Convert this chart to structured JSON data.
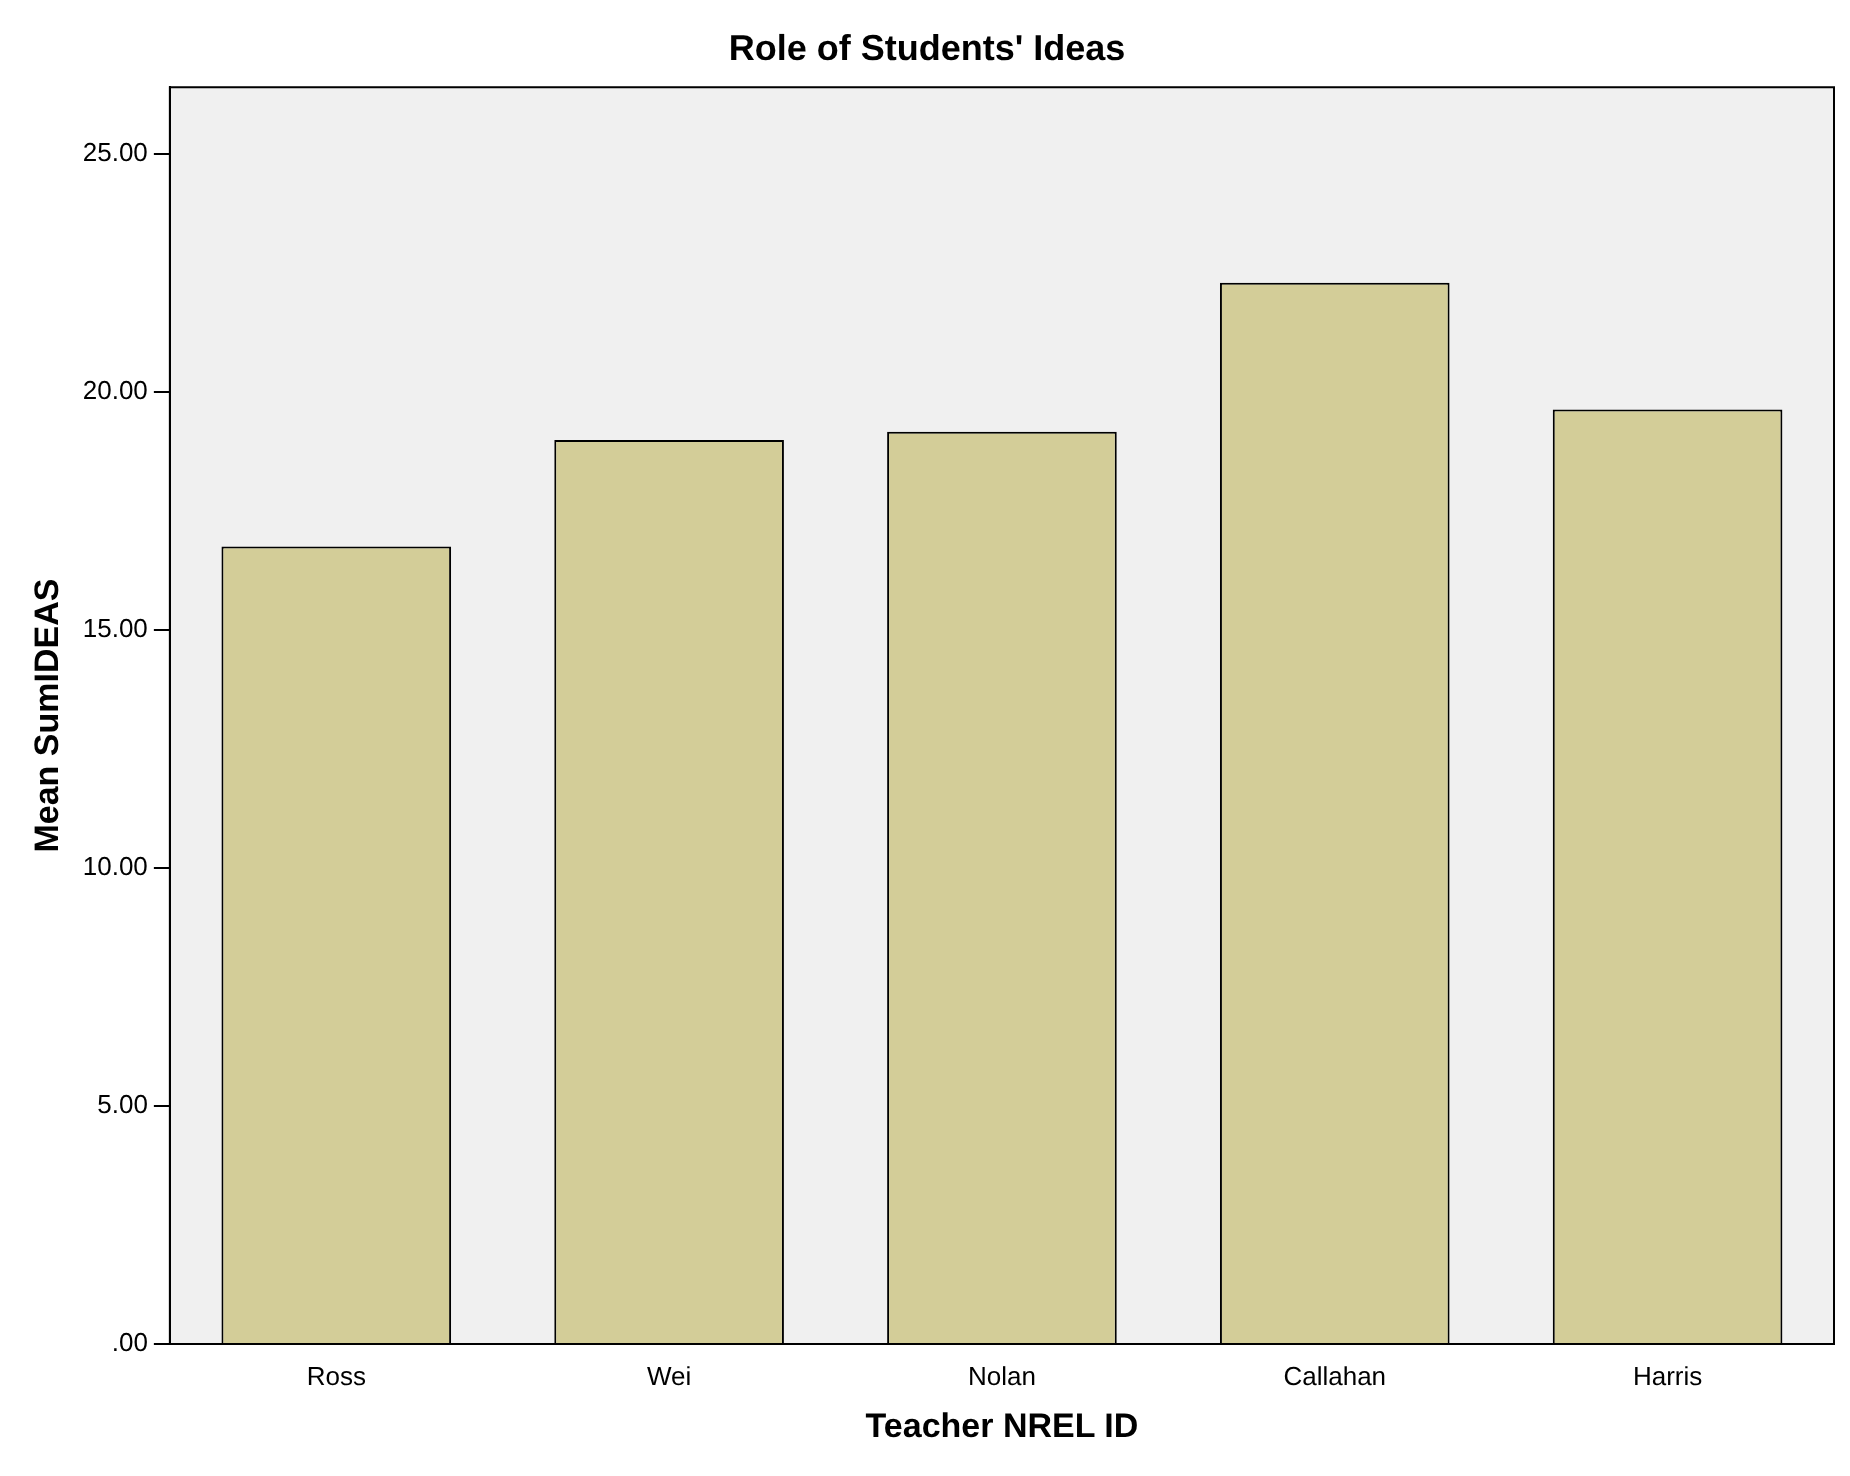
{
  "chart_data": {
    "type": "bar",
    "title": "Role of Students' Ideas",
    "xlabel": "Teacher NREL ID",
    "ylabel": "Mean SumIDEAS",
    "categories": [
      "Ross",
      "Wei",
      "Nolan",
      "Callahan",
      "Harris"
    ],
    "values": [
      16.75,
      18.99,
      19.16,
      22.29,
      19.63
    ],
    "color": "#d3cd98",
    "ylim": [
      0,
      26.4
    ],
    "yticks": [
      {
        "value": 0,
        "label": ".00"
      },
      {
        "value": 5,
        "label": "5.00"
      },
      {
        "value": 10,
        "label": "10.00"
      },
      {
        "value": 15,
        "label": "15.00"
      },
      {
        "value": 20,
        "label": "20.00"
      },
      {
        "value": 25,
        "label": "25.00"
      }
    ],
    "grid": false,
    "legend": false
  }
}
